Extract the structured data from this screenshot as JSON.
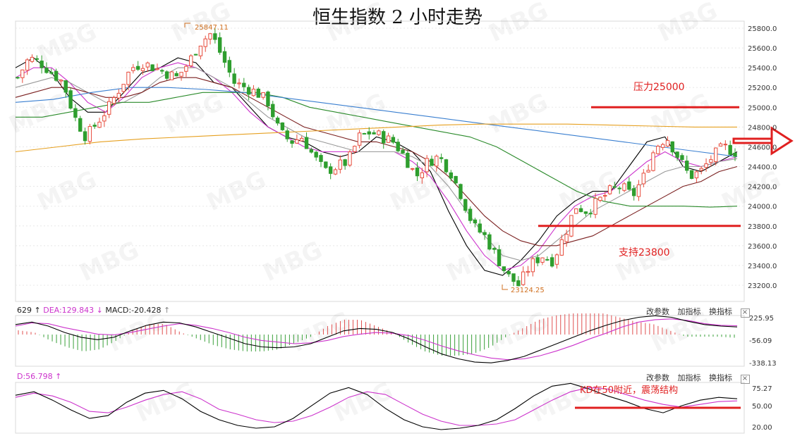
{
  "title": "恒生指数 2 小时走势",
  "main": {
    "price_ticks": [
      "25800.0",
      "25600.0",
      "25400.0",
      "25200.0",
      "25000.0",
      "24800.0",
      "24600.0",
      "24400.0",
      "24200.0",
      "24000.0",
      "23800.0",
      "23600.0",
      "23400.0",
      "23200.0"
    ],
    "high_label": "25847.11",
    "low_label": "23124.25",
    "resistance_label": "压力25000",
    "support_label": "支持23800",
    "colors": {
      "up": "#e74c3c",
      "down": "#2e9e2e",
      "resistance": "#e02020",
      "support": "#e02020",
      "arrow": "#e02020"
    }
  },
  "macd": {
    "dif_label": "629",
    "dea_label": "DEA:129.843",
    "macd_label": "MACD:-20.428",
    "ticks": [
      "225.95",
      "-56.09",
      "-338.13"
    ],
    "controls": [
      "改参数",
      "加指标",
      "换指标"
    ]
  },
  "kd": {
    "d_label": "D:56.798",
    "ticks": [
      "75.27",
      "50.00",
      "20.00"
    ],
    "annotation": "KD在50附近，震荡结构",
    "controls": [
      "改参数",
      "加指标",
      "换指标"
    ]
  },
  "watermark": "MBG",
  "chart_data": [
    {
      "type": "candlestick",
      "title": "恒生指数 2 小时走势",
      "ylim": [
        23100,
        25900
      ],
      "y_ticks": [
        25800,
        25600,
        25400,
        25200,
        25000,
        24800,
        24600,
        24400,
        24200,
        24000,
        23800,
        23600,
        23400,
        23200
      ],
      "high": 25847.11,
      "low": 23124.25,
      "levels": [
        {
          "label": "压力25000",
          "value": 25000
        },
        {
          "label": "支持23800",
          "value": 23800
        }
      ],
      "close_path": [
        25300,
        25500,
        25450,
        25350,
        25250,
        24900,
        24700,
        24850,
        25000,
        25200,
        25400,
        25450,
        25400,
        25350,
        25300,
        25450,
        25650,
        25750,
        25500,
        25250,
        25200,
        25150,
        25050,
        24750,
        24650,
        24700,
        24500,
        24350,
        24400,
        24450,
        24700,
        24750,
        24700,
        24650,
        24500,
        24300,
        24450,
        24500,
        24350,
        24100,
        23800,
        23700,
        23500,
        23300,
        23200,
        23400,
        23500,
        23450,
        23700,
        24000,
        23950,
        24050,
        24150,
        24200,
        24100,
        24300,
        24600,
        24700,
        24500,
        24300,
        24350,
        24500,
        24600,
        24550
      ],
      "ma_lines": [
        {
          "color": "#000000",
          "path": [
            25400,
            25500,
            25350,
            25100,
            24950,
            24950,
            25150,
            25350,
            25400,
            25500,
            25450,
            25250,
            25200,
            25000,
            24800,
            24700,
            24650,
            24550,
            24500,
            24550,
            24700,
            24650,
            24550,
            24350,
            23950,
            23600,
            23350,
            23300,
            23450,
            23650,
            23900,
            24050,
            24150,
            24150,
            24400,
            24650,
            24700,
            24400,
            24350,
            24450,
            24550
          ]
        },
        {
          "color": "#cc33cc",
          "path": [
            25300,
            25400,
            25400,
            25250,
            25050,
            24950,
            25100,
            25300,
            25400,
            25450,
            25400,
            25300,
            25150,
            24950,
            24800,
            24700,
            24600,
            24550,
            24550,
            24550,
            24550,
            24550,
            24450,
            24300,
            24050,
            23750,
            23500,
            23350,
            23400,
            23550,
            23800,
            24000,
            24100,
            24150,
            24300,
            24450,
            24550,
            24450,
            24400,
            24450,
            24500
          ]
        },
        {
          "color": "#999999",
          "path": [
            25200,
            25250,
            25300,
            25250,
            25150,
            25050,
            25050,
            25150,
            25300,
            25400,
            25400,
            25300,
            25200,
            25050,
            24900,
            24800,
            24700,
            24650,
            24600,
            24550,
            24550,
            24550,
            24500,
            24400,
            24200,
            23950,
            23700,
            23500,
            23450,
            23500,
            23650,
            23800,
            23950,
            24050,
            24150,
            24250,
            24350,
            24400,
            24400,
            24450,
            24480
          ]
        },
        {
          "color": "#7a1f1f",
          "path": [
            25100,
            25150,
            25200,
            25200,
            25150,
            25100,
            25100,
            25150,
            25250,
            25300,
            25300,
            25250,
            25200,
            25100,
            25000,
            24900,
            24800,
            24750,
            24700,
            24650,
            24650,
            24600,
            24550,
            24450,
            24300,
            24100,
            23900,
            23750,
            23650,
            23600,
            23600,
            23650,
            23700,
            23800,
            23900,
            24000,
            24100,
            24200,
            24250,
            24350,
            24400
          ]
        },
        {
          "color": "#2a8a2a",
          "path": [
            24900,
            24900,
            24950,
            25000,
            25050,
            25050,
            25100,
            25150,
            25150,
            25150,
            25100,
            25000,
            24950,
            24900,
            24850,
            24800,
            24750,
            24700,
            24600,
            24450,
            24300,
            24150,
            24050,
            24000,
            24000,
            24000,
            23990,
            24000
          ]
        },
        {
          "color": "#3a7fd0",
          "path": [
            25050,
            25080,
            25150,
            25200,
            25200,
            25180,
            25150,
            25100,
            25050,
            25000,
            24950,
            24900,
            24850,
            24800,
            24750,
            24700,
            24650,
            24600,
            24550,
            24500
          ]
        },
        {
          "color": "#e6a020",
          "path": [
            24550,
            24600,
            24650,
            24680,
            24700,
            24720,
            24740,
            24760,
            24780,
            24800,
            24820,
            24830,
            24830,
            24830,
            24820,
            24810,
            24800,
            24800
          ]
        }
      ]
    },
    {
      "type": "line",
      "series": [
        {
          "name": "DEA",
          "color": "#cc33cc",
          "values": [
            120,
            160,
            150,
            100,
            60,
            20,
            10,
            40,
            80,
            120,
            150,
            130,
            90,
            40,
            -20,
            -60,
            -80,
            -100,
            -90,
            -60,
            -10,
            20,
            40,
            30,
            0,
            -60,
            -130,
            -190,
            -240,
            -280,
            -300,
            -290,
            -250,
            -190,
            -120,
            -40,
            30,
            110,
            170,
            200,
            210,
            190,
            150,
            130,
            125
          ]
        },
        {
          "name": "DIF",
          "color": "#000000",
          "values": [
            140,
            170,
            120,
            40,
            -20,
            -50,
            -20,
            60,
            130,
            170,
            160,
            110,
            40,
            -30,
            -100,
            -140,
            -150,
            -140,
            -100,
            -20,
            60,
            90,
            80,
            40,
            -40,
            -140,
            -230,
            -290,
            -330,
            -340,
            -310,
            -260,
            -180,
            -100,
            -20,
            60,
            130,
            190,
            230,
            250,
            230,
            180,
            140,
            120,
            110
          ]
        }
      ],
      "ylim": [
        -338.13,
        225.95
      ],
      "y_ticks": [
        225.95,
        -56.09,
        -338.13
      ]
    },
    {
      "type": "line",
      "series": [
        {
          "name": "D",
          "color": "#cc33cc",
          "values": [
            62,
            68,
            64,
            55,
            42,
            40,
            48,
            58,
            66,
            70,
            60,
            45,
            38,
            30,
            26,
            28,
            36,
            48,
            62,
            70,
            66,
            52,
            38,
            28,
            22,
            22,
            24,
            30,
            44,
            58,
            70,
            76,
            74,
            66,
            58,
            52,
            48,
            52,
            56,
            57
          ]
        },
        {
          "name": "K",
          "color": "#000000",
          "values": [
            65,
            70,
            58,
            44,
            32,
            36,
            55,
            68,
            72,
            60,
            42,
            30,
            22,
            18,
            20,
            32,
            50,
            68,
            76,
            66,
            46,
            30,
            20,
            16,
            18,
            22,
            30,
            46,
            64,
            78,
            82,
            74,
            64,
            56,
            46,
            40,
            50,
            58,
            62,
            60
          ]
        }
      ],
      "ylim": [
        15,
        85
      ],
      "y_ticks": [
        75.27,
        50.0,
        20.0
      ],
      "levels": [
        {
          "value": 50
        }
      ],
      "annotation": "KD在50附近，震荡结构"
    }
  ]
}
